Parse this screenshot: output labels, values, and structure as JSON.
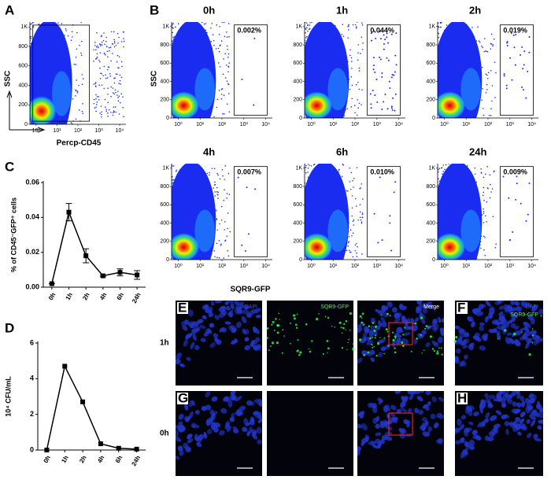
{
  "panels": {
    "letters": [
      "A",
      "B",
      "C",
      "D",
      "E",
      "F",
      "G",
      "H"
    ],
    "flow": {
      "ylim": [
        0,
        1050
      ],
      "yticks": [
        0,
        200,
        400,
        600,
        800,
        {
          "value": 1000,
          "label": "1K"
        }
      ],
      "xlim": [
        0.5,
        20000
      ],
      "log_x": true,
      "xticks": [
        {
          "value": 1,
          "label": "10⁰"
        },
        {
          "value": 10,
          "label": "10¹"
        },
        {
          "value": 100,
          "label": "10²"
        },
        {
          "value": 1000,
          "label": "10³"
        },
        {
          "value": 10000,
          "label": "10⁴"
        }
      ]
    },
    "A": {
      "ylabel": "SSC",
      "xlabel": "Percp-CD45"
    },
    "B": {
      "ylabel": "SSC",
      "xlabel": "SQR9-GFP",
      "plots": [
        {
          "time": "0h",
          "gate": "0.002%"
        },
        {
          "time": "1h",
          "gate": "0.044%"
        },
        {
          "time": "2h",
          "gate": "0.019%"
        },
        {
          "time": "4h",
          "gate": "0.007%"
        },
        {
          "time": "6h",
          "gate": "0.010%"
        },
        {
          "time": "24h",
          "gate": "0.009%"
        }
      ]
    },
    "microscopy": {
      "columns": [
        "DAPI",
        "SQR9-GFP",
        "Merge"
      ],
      "rows": [
        "1h",
        "0h"
      ],
      "inset_labels": [
        "DAPI",
        "SQR9-GFP"
      ]
    }
  },
  "chart_data": [
    {
      "type": "line",
      "ylabel": "% of CD45⁻GFP⁺ cells",
      "categories": [
        "0h",
        "1h",
        "2h",
        "4h",
        "6h",
        "24h"
      ],
      "values": [
        0.002,
        0.043,
        0.018,
        0.0065,
        0.0085,
        0.007
      ],
      "errors": [
        0,
        0.005,
        0.004,
        0.0005,
        0.002,
        0.0025
      ],
      "color": "#000000",
      "ylim": [
        0,
        0.06
      ],
      "yticks": [
        {
          "value": 0,
          "label": "0.00"
        },
        {
          "value": 0.02,
          "label": "0.02"
        },
        {
          "value": 0.04,
          "label": "0.04"
        },
        {
          "value": 0.06,
          "label": "0.06"
        }
      ]
    },
    {
      "type": "line",
      "ylabel": "10⁴ CFU/mL",
      "categories": [
        "0h",
        "1h",
        "2h",
        "4h",
        "6h",
        "24h"
      ],
      "values": [
        0,
        4.7,
        2.7,
        0.35,
        0.1,
        0.05
      ],
      "color": "#000000",
      "ylim": [
        0,
        6
      ],
      "yticks": [
        0,
        2,
        4,
        6
      ]
    }
  ]
}
